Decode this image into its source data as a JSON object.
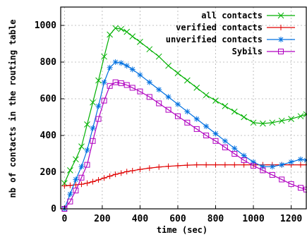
{
  "chart_data": {
    "type": "line",
    "xlabel": "time (sec)",
    "ylabel": "nb of contacts in the routing table",
    "xlim": [
      -20,
      1280
    ],
    "ylim": [
      0,
      1100
    ],
    "xticks": [
      "0",
      "200",
      "400",
      "600",
      "800",
      "1000",
      "1200"
    ],
    "yticks": [
      "0",
      "200",
      "400",
      "600",
      "800",
      "1000"
    ],
    "grid": true,
    "legend_position": "top-right",
    "series": [
      {
        "name": "all contacts",
        "color": "#00b000",
        "marker": "x",
        "x": [
          0,
          30,
          60,
          90,
          120,
          150,
          180,
          210,
          240,
          270,
          300,
          330,
          360,
          400,
          450,
          500,
          550,
          600,
          650,
          700,
          750,
          800,
          850,
          900,
          950,
          1000,
          1050,
          1100,
          1150,
          1200,
          1250,
          1280
        ],
        "y": [
          140,
          210,
          270,
          340,
          460,
          580,
          700,
          830,
          950,
          985,
          980,
          965,
          940,
          910,
          870,
          830,
          780,
          740,
          700,
          660,
          620,
          590,
          560,
          530,
          500,
          470,
          465,
          470,
          480,
          490,
          505,
          515
        ]
      },
      {
        "name": "verified contacts",
        "color": "#e00000",
        "marker": "+",
        "x": [
          0,
          30,
          60,
          90,
          120,
          150,
          180,
          210,
          240,
          270,
          300,
          330,
          360,
          400,
          450,
          500,
          550,
          600,
          650,
          700,
          750,
          800,
          850,
          900,
          950,
          1000,
          1050,
          1100,
          1150,
          1200,
          1250,
          1280
        ],
        "y": [
          125,
          128,
          131,
          134,
          140,
          148,
          158,
          168,
          178,
          188,
          195,
          203,
          208,
          215,
          222,
          228,
          232,
          235,
          238,
          240,
          240,
          240,
          240,
          240,
          240,
          240,
          240,
          240,
          240,
          240,
          240,
          240
        ]
      },
      {
        "name": "unverified contacts",
        "color": "#0070e0",
        "marker": "*",
        "x": [
          0,
          30,
          60,
          90,
          120,
          150,
          180,
          210,
          240,
          270,
          300,
          330,
          360,
          400,
          450,
          500,
          550,
          600,
          650,
          700,
          750,
          800,
          850,
          900,
          950,
          1000,
          1050,
          1100,
          1150,
          1200,
          1250,
          1280
        ],
        "y": [
          0,
          80,
          160,
          230,
          320,
          440,
          560,
          690,
          770,
          800,
          795,
          780,
          760,
          730,
          690,
          650,
          610,
          570,
          530,
          490,
          450,
          410,
          370,
          330,
          290,
          255,
          230,
          230,
          240,
          255,
          270,
          265
        ]
      },
      {
        "name": "Sybils",
        "color": "#b000c0",
        "marker": "square",
        "x": [
          0,
          30,
          60,
          90,
          120,
          150,
          180,
          210,
          240,
          270,
          300,
          330,
          360,
          400,
          450,
          500,
          550,
          600,
          650,
          700,
          750,
          800,
          850,
          900,
          950,
          1000,
          1050,
          1100,
          1150,
          1200,
          1250,
          1280
        ],
        "y": [
          0,
          40,
          100,
          170,
          240,
          370,
          490,
          590,
          670,
          690,
          685,
          675,
          660,
          640,
          610,
          575,
          540,
          505,
          470,
          435,
          400,
          370,
          335,
          300,
          265,
          235,
          210,
          185,
          160,
          135,
          115,
          105
        ]
      }
    ]
  }
}
